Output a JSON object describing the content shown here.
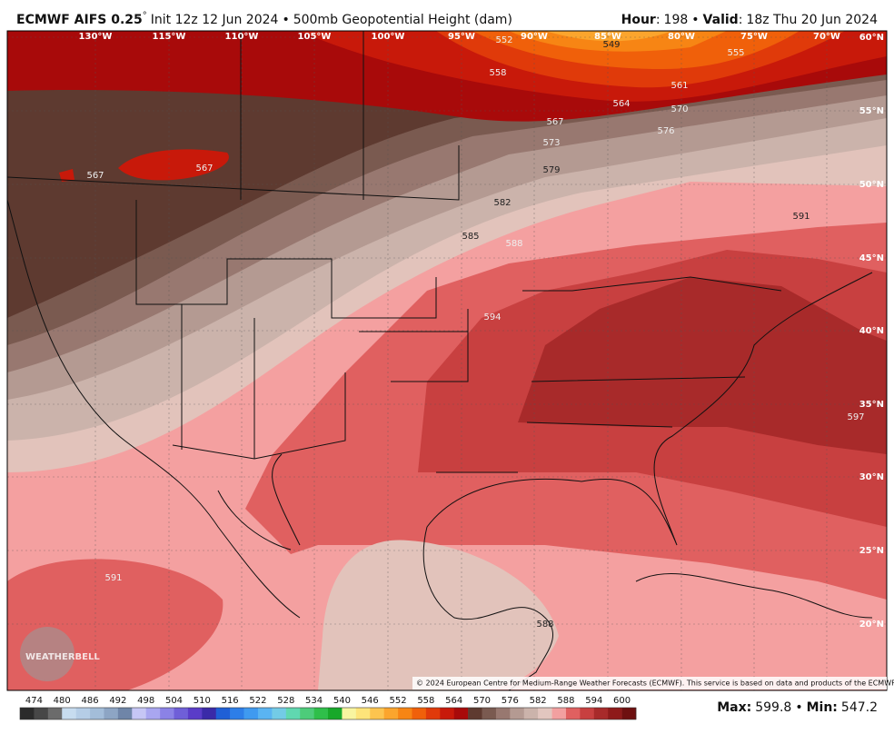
{
  "header": {
    "title": "ECMWF AIFS 0.25",
    "degree": "°",
    "init": "Init 12z 12 Jun 2024",
    "separator": "•",
    "field": "500mb Geopotential Height (dam)",
    "hour_label": "Hour",
    "colon": ":",
    "hour": "198",
    "valid_label": "Valid",
    "valid": "18z Thu 20 Jun 2024"
  },
  "map": {
    "longitudes": [
      "130°W",
      "115°W",
      "110°W",
      "105°W",
      "100°W",
      "95°W",
      "90°W",
      "85°W",
      "80°W",
      "75°W",
      "70°W"
    ],
    "latitudes": [
      "60°N",
      "55°N",
      "50°N",
      "45°N",
      "40°N",
      "35°N",
      "30°N",
      "25°N",
      "20°N"
    ],
    "contour_labels": [
      "552",
      "549",
      "555",
      "558",
      "561",
      "564",
      "567",
      "570",
      "573",
      "576",
      "579",
      "582",
      "585",
      "588",
      "591",
      "594",
      "597",
      "591",
      "588",
      "567",
      "567"
    ],
    "logo": "WEATHERBELL",
    "copyright": "© 2024 European Centre for Medium-Range Weather Forecasts (ECMWF). This service is based on data and products of the ECMWF."
  },
  "colorbar": {
    "labels": [
      474,
      480,
      486,
      492,
      498,
      504,
      510,
      516,
      522,
      528,
      534,
      540,
      546,
      552,
      558,
      564,
      570,
      576,
      582,
      588,
      594,
      600
    ],
    "colors": [
      "#2b2b2b",
      "#474747",
      "#6b6b6b",
      "#c7dcef",
      "#b5cde6",
      "#a3bdd9",
      "#8da5c4",
      "#6f85a8",
      "#c6c6f5",
      "#a9a6f0",
      "#8b82e6",
      "#6f5fd8",
      "#5a3cc8",
      "#3a2aa8",
      "#1f5fd6",
      "#2d7ee8",
      "#3f9af0",
      "#5ab4f2",
      "#73cbe6",
      "#60d8b0",
      "#4dcc7a",
      "#2fbf4a",
      "#18a82a",
      "#f8f5a0",
      "#fde47a",
      "#fcc44f",
      "#fba52d",
      "#f78514",
      "#f0600a",
      "#e03a0a",
      "#c8190a",
      "#a80a0a",
      "#5e3a30",
      "#7a5a50",
      "#987870",
      "#b49a92",
      "#cbb3ab",
      "#e2c6bf",
      "#f2a0a0",
      "#e06060",
      "#c84040",
      "#a82a2a",
      "#8e1a1a",
      "#6e1010"
    ]
  },
  "footer": {
    "max_label": "Max",
    "max": "599.8",
    "separator": "•",
    "min_label": "Min",
    "min": "547.2"
  }
}
